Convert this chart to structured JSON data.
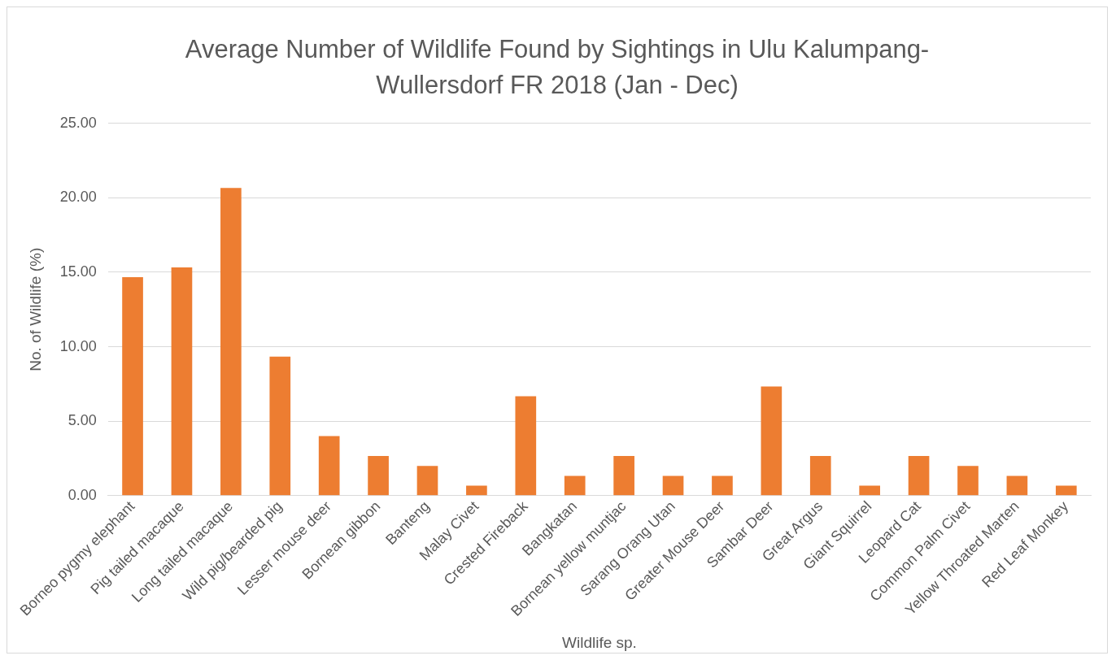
{
  "chart_data": {
    "type": "bar",
    "title": "Average Number of Wildlife Found by Sightings in Ulu Kalumpang-Wullersdorf FR 2018 (Jan - Dec)",
    "xlabel": "Wildlife sp.",
    "ylabel": "No. of Wildlife (%)",
    "categories": [
      "Borneo pygmy elephant",
      "Pig tailed macaque",
      "Long tailed macaque",
      "Wild pig/bearded pig",
      "Lesser mouse deer",
      "Bornean gibbon",
      "Banteng",
      "Malay Civet",
      "Crested Fireback",
      "Bangkatan",
      "Bornean yellow muntjac",
      "Sarang Orang Utan",
      "Greater Mouse Deer",
      "Sambar Deer",
      "Great Argus",
      "Giant Squirrel",
      "Leopard Cat",
      "Common Palm Civet",
      "Yellow Throated Marten",
      "Red Leaf Monkey"
    ],
    "values": [
      14.67,
      15.33,
      20.67,
      9.33,
      4.0,
      2.67,
      2.0,
      0.67,
      6.67,
      1.33,
      2.67,
      1.33,
      1.33,
      7.33,
      2.67,
      0.67,
      2.67,
      2.0,
      1.33,
      0.67
    ],
    "color": "#ed7d31",
    "ylim": [
      0,
      25
    ],
    "yticks": [
      {
        "value": 0,
        "label": "0.00"
      },
      {
        "value": 5,
        "label": "5.00"
      },
      {
        "value": 10,
        "label": "10.00"
      },
      {
        "value": 15,
        "label": "15.00"
      },
      {
        "value": 20,
        "label": "20.00"
      },
      {
        "value": 25,
        "label": "25.00"
      }
    ],
    "grid": "y",
    "legend": false
  }
}
